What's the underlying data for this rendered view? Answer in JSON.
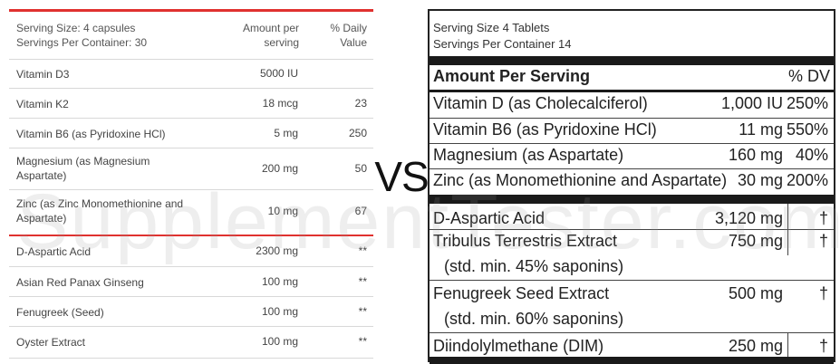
{
  "left": {
    "serving_size": "Serving Size: 4 capsules",
    "servings_per_container": "Servings Per Container: 30",
    "amount_header_1": "Amount per",
    "amount_header_2": "serving",
    "dv_header_1": "% Daily",
    "dv_header_2": "Value",
    "rows": [
      {
        "name": "Vitamin D3",
        "name2": "",
        "amount": "5000 IU",
        "dv": ""
      },
      {
        "name": "Vitamin K2",
        "name2": "",
        "amount": "18 mcg",
        "dv": "23"
      },
      {
        "name": "Vitamin B6 (as Pyridoxine HCl)",
        "name2": "",
        "amount": "5 mg",
        "dv": "250"
      },
      {
        "name": "Magnesium (as Magnesium",
        "name2": "Aspartate)",
        "amount": "200 mg",
        "dv": "50"
      },
      {
        "name": "Zinc (as Zinc Monomethionine and",
        "name2": "Aspartate)",
        "amount": "10 mg",
        "dv": "67"
      },
      {
        "name": "D-Aspartic Acid",
        "name2": "",
        "amount": "2300 mg",
        "dv": "**"
      },
      {
        "name": "Asian Red Panax Ginseng",
        "name2": "",
        "amount": "100 mg",
        "dv": "**"
      },
      {
        "name": "Fenugreek (Seed)",
        "name2": "",
        "amount": "100 mg",
        "dv": "**"
      },
      {
        "name": "Oyster Extract",
        "name2": "",
        "amount": "100 mg",
        "dv": "**"
      }
    ]
  },
  "vs": "VS",
  "right": {
    "serving_size": "Serving Size 4 Tablets",
    "servings_per_container": "Servings Per Container 14",
    "amount_header": "Amount Per Serving",
    "dv_header": "% DV",
    "rows": [
      {
        "name": "Vitamin D (as Cholecalciferol)",
        "amount": "1,000 IU",
        "dv": "250%"
      },
      {
        "name": "Vitamin B6 (as Pyridoxine HCl)",
        "amount": "11 mg",
        "dv": "550%"
      },
      {
        "name": "Magnesium (as Aspartate)",
        "amount": "160 mg",
        "dv": "40%"
      },
      {
        "name": "Zinc (as Monomethionine and Aspartate)",
        "amount": "30 mg",
        "dv": "200%"
      },
      {
        "name": "D-Aspartic Acid",
        "amount": "3,120 mg",
        "dv": "†"
      },
      {
        "name": "Tribulus Terrestris Extract",
        "amount": "750 mg",
        "dv": "†"
      },
      {
        "name": "Fenugreek Seed Extract",
        "amount": "500 mg",
        "dv": "†"
      },
      {
        "name": "Diindolylmethane (DIM)",
        "amount": "250 mg",
        "dv": "†"
      }
    ],
    "tribulus_note": "(std. min. 45% saponins)",
    "fenugreek_note": "(std. min. 60% saponins)"
  },
  "watermark": "SupplementTester.com",
  "colors": {
    "accent_red": "#e0312f",
    "dark_bar": "#1a1a1a"
  }
}
